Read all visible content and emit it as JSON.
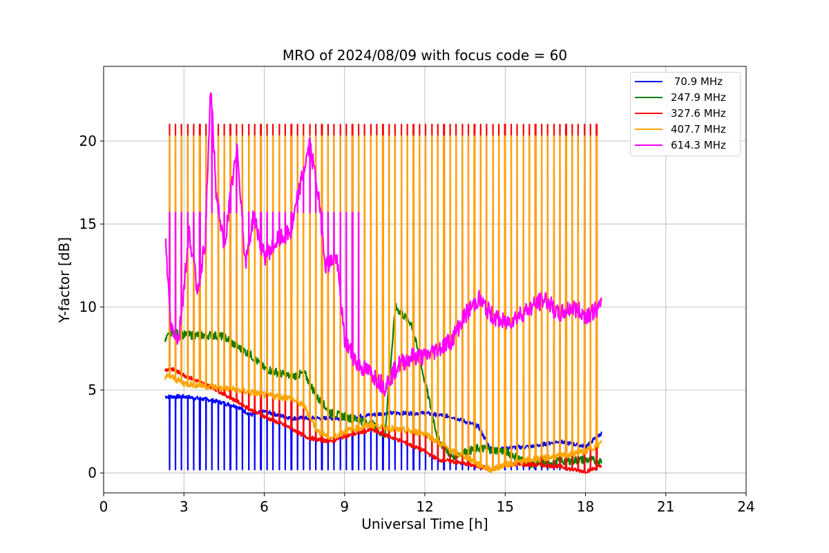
{
  "chart_data": {
    "type": "line",
    "title": "MRO of 2024/08/09 with focus code = 60",
    "xlabel": "Universal Time [h]",
    "ylabel": "Y-factor [dB]",
    "xlim": [
      0,
      24
    ],
    "ylim": [
      -1.2,
      24.5
    ],
    "xticks": [
      0,
      3,
      6,
      9,
      12,
      15,
      18,
      21,
      24
    ],
    "yticks": [
      0,
      5,
      10,
      15,
      20
    ],
    "grid": true,
    "legend_position": "top-right",
    "series": [
      {
        "name": " 70.9 MHz",
        "color": "#0000ff",
        "pulse": {
          "start": 2.45,
          "end": 18.6,
          "period": 0.228,
          "to": 0.2
        },
        "baseline": {
          "x": [
            2.3,
            3.0,
            4.0,
            5.0,
            5.5,
            6.0,
            7.0,
            8.0,
            9.0,
            10.5,
            12.0,
            13.0,
            14.0,
            14.5,
            15.0,
            16.0,
            17.0,
            18.0,
            18.6
          ],
          "y": [
            4.6,
            4.6,
            4.4,
            4.0,
            3.5,
            3.7,
            3.3,
            3.3,
            3.3,
            3.6,
            3.6,
            3.4,
            2.8,
            1.3,
            1.5,
            1.6,
            1.9,
            1.6,
            2.4
          ]
        }
      },
      {
        "name": "247.9 MHz",
        "color": "#008000",
        "baseline": {
          "x": [
            2.3,
            2.5,
            3.0,
            4.0,
            4.5,
            5.0,
            5.5,
            6.0,
            7.0,
            7.5,
            8.0,
            8.5,
            9.0,
            10.0,
            10.5,
            10.9,
            11.5,
            12.0,
            12.5,
            13.0,
            14.0,
            15.0,
            16.0,
            17.0,
            18.0,
            18.6
          ],
          "y": [
            7.9,
            8.5,
            8.3,
            8.3,
            8.2,
            7.6,
            7.1,
            6.3,
            5.8,
            6.0,
            4.5,
            3.6,
            3.4,
            3.0,
            2.2,
            10.0,
            9.0,
            5.5,
            2.0,
            1.0,
            1.5,
            1.3,
            0.5,
            0.7,
            0.8,
            0.7
          ]
        }
      },
      {
        "name": "327.6 MHz",
        "color": "#ff0000",
        "pulse": {
          "start": 2.45,
          "end": 18.6,
          "period": 0.228,
          "to": 21.0
        },
        "baseline": {
          "x": [
            2.3,
            2.5,
            3.0,
            4.0,
            5.0,
            5.5,
            6.0,
            7.0,
            7.5,
            8.0,
            8.5,
            9.0,
            10.0,
            11.0,
            12.0,
            12.5,
            13.0,
            14.0,
            14.5,
            15.0,
            16.0,
            17.0,
            17.5,
            18.0,
            18.6
          ],
          "y": [
            6.2,
            6.3,
            5.9,
            5.2,
            4.3,
            3.8,
            3.4,
            2.7,
            2.2,
            2.0,
            1.9,
            2.2,
            2.6,
            2.0,
            1.3,
            0.8,
            0.7,
            0.4,
            0.2,
            0.5,
            0.5,
            0.4,
            0.2,
            0.1,
            0.4
          ]
        }
      },
      {
        "name": "407.7 MHz",
        "color": "#ffa500",
        "pulse": {
          "start": 2.45,
          "end": 18.6,
          "period": 0.228,
          "to": 20.3
        },
        "baseline": {
          "x": [
            2.3,
            2.5,
            3.0,
            4.0,
            5.0,
            6.0,
            7.0,
            7.5,
            8.0,
            8.5,
            9.0,
            10.0,
            11.0,
            12.0,
            13.0,
            13.5,
            14.0,
            14.5,
            15.0,
            16.0,
            17.0,
            18.0,
            18.6
          ],
          "y": [
            5.8,
            5.8,
            5.4,
            5.2,
            5.0,
            4.7,
            4.5,
            4.0,
            2.5,
            2.1,
            2.5,
            2.9,
            2.6,
            2.4,
            1.3,
            1.0,
            0.5,
            0.2,
            0.5,
            0.8,
            1.0,
            1.3,
            1.8
          ]
        }
      },
      {
        "name": "614.3 MHz",
        "color": "#ff00ff",
        "pulse": {
          "start": 2.45,
          "end": 9.6,
          "period": 0.228,
          "to": 15.7
        },
        "baseline": {
          "x": [
            2.3,
            2.5,
            2.8,
            3.2,
            3.5,
            3.8,
            4.0,
            4.2,
            4.5,
            4.8,
            5.0,
            5.3,
            5.6,
            6.0,
            6.5,
            7.0,
            7.3,
            7.7,
            8.0,
            8.3,
            8.7,
            9.0,
            9.5,
            10.0,
            10.5,
            11.0,
            11.5,
            12.0,
            12.5,
            13.0,
            13.5,
            14.0,
            14.5,
            15.0,
            15.5,
            16.0,
            16.5,
            17.0,
            17.5,
            18.0,
            18.6
          ],
          "y": [
            14.4,
            9.0,
            8.0,
            14.5,
            11.0,
            14.0,
            23.3,
            17.0,
            13.5,
            17.5,
            19.5,
            12.5,
            15.5,
            13.0,
            14.0,
            14.5,
            17.0,
            19.8,
            17.0,
            12.5,
            13.0,
            8.0,
            6.5,
            6.0,
            5.2,
            6.5,
            7.0,
            7.0,
            7.5,
            8.0,
            9.5,
            10.5,
            9.5,
            9.0,
            9.5,
            10.0,
            10.5,
            9.5,
            10.0,
            9.5,
            10.0
          ]
        }
      }
    ]
  }
}
